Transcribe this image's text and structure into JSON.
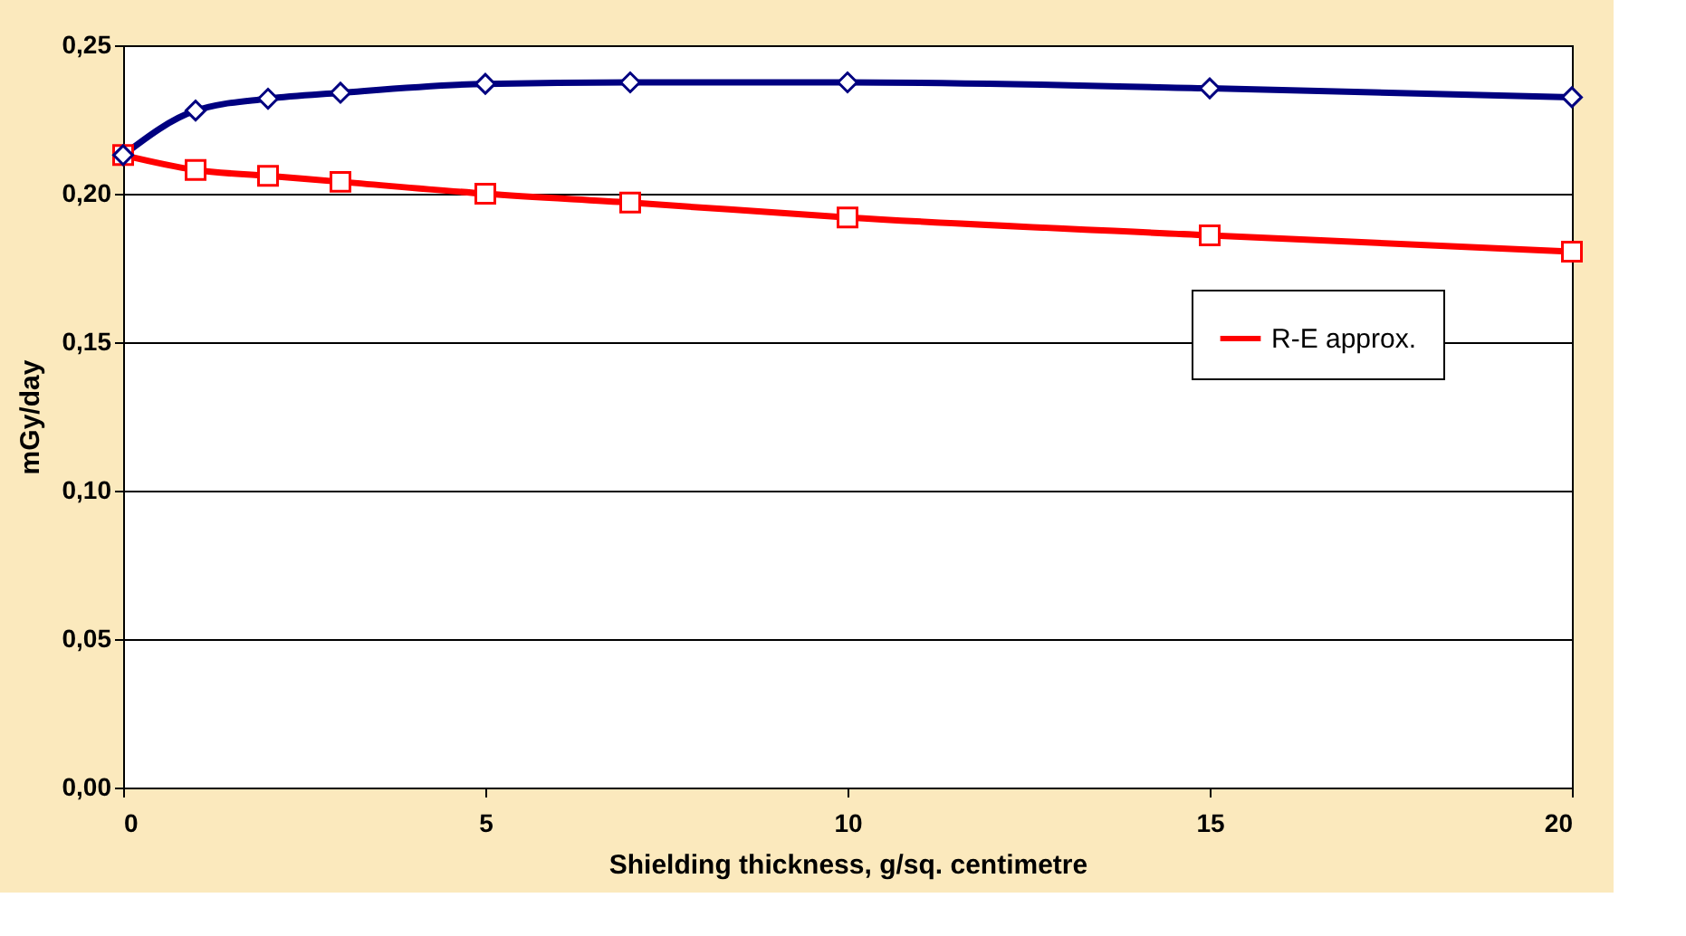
{
  "chart_data": {
    "type": "line",
    "xlabel": "Shielding thickness, g/sq. centimetre",
    "ylabel": "mGy/day",
    "xlim": [
      0,
      20
    ],
    "xticks": [
      0,
      5,
      10,
      15,
      20
    ],
    "ylim": [
      0,
      0.25
    ],
    "yticks": [
      {
        "value": 0,
        "label": "0,00"
      },
      {
        "value": 0.05,
        "label": "0,05"
      },
      {
        "value": 0.1,
        "label": "0,10"
      },
      {
        "value": 0.15,
        "label": "0,15"
      },
      {
        "value": 0.2,
        "label": "0,20"
      },
      {
        "value": 0.25,
        "label": "0,25"
      }
    ],
    "grid": "y",
    "legend": "right",
    "line_style": "solid",
    "series": [
      {
        "color": "#000080",
        "marker": "diamond",
        "x": [
          0,
          1,
          2,
          3,
          5,
          7,
          10,
          15,
          20
        ],
        "values": [
          0.213,
          0.228,
          0.232,
          0.234,
          0.237,
          0.2375,
          0.2375,
          0.2355,
          0.2325
        ]
      },
      {
        "name": "R-E approx.",
        "color": "#ff0000",
        "marker": "square",
        "x": [
          0,
          1,
          2,
          3,
          5,
          7,
          10,
          15,
          20
        ],
        "values": [
          0.213,
          0.208,
          0.206,
          0.204,
          0.2,
          0.197,
          0.192,
          0.186,
          0.1805
        ]
      }
    ]
  }
}
